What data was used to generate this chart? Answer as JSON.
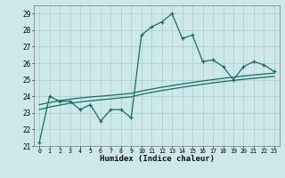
{
  "title": "",
  "xlabel": "Humidex (Indice chaleur)",
  "ylabel": "",
  "bg_color": "#cce8e8",
  "grid_color": "#b0cfcf",
  "line_color": "#1a6b6b",
  "xlim": [
    -0.5,
    23.5
  ],
  "ylim": [
    21,
    29.5
  ],
  "yticks": [
    21,
    22,
    23,
    24,
    25,
    26,
    27,
    28,
    29
  ],
  "xticks": [
    0,
    1,
    2,
    3,
    4,
    5,
    6,
    7,
    8,
    9,
    10,
    11,
    12,
    13,
    14,
    15,
    16,
    17,
    18,
    19,
    20,
    21,
    22,
    23
  ],
  "line1_x": [
    0,
    1,
    2,
    3,
    4,
    5,
    6,
    7,
    8,
    9,
    10,
    11,
    12,
    13,
    14,
    15,
    16,
    17,
    18,
    19,
    20,
    21,
    22,
    23
  ],
  "line1_y": [
    21.2,
    24.0,
    23.7,
    23.7,
    23.2,
    23.5,
    22.5,
    23.2,
    23.2,
    22.7,
    27.7,
    28.2,
    28.5,
    29.0,
    27.5,
    27.7,
    26.1,
    26.2,
    25.8,
    25.0,
    25.8,
    26.1,
    25.9,
    25.5
  ],
  "line2_x": [
    0,
    1,
    2,
    3,
    4,
    5,
    6,
    7,
    8,
    9,
    10,
    11,
    12,
    13,
    14,
    15,
    16,
    17,
    18,
    19,
    20,
    21,
    22,
    23
  ],
  "line2_y": [
    23.5,
    23.62,
    23.74,
    23.83,
    23.9,
    23.96,
    24.01,
    24.06,
    24.12,
    24.18,
    24.32,
    24.44,
    24.55,
    24.65,
    24.75,
    24.84,
    24.93,
    25.01,
    25.09,
    25.16,
    25.23,
    25.29,
    25.35,
    25.4
  ],
  "line3_x": [
    0,
    1,
    2,
    3,
    4,
    5,
    6,
    7,
    8,
    9,
    10,
    11,
    12,
    13,
    14,
    15,
    16,
    17,
    18,
    19,
    20,
    21,
    22,
    23
  ],
  "line3_y": [
    23.2,
    23.35,
    23.47,
    23.58,
    23.66,
    23.73,
    23.79,
    23.85,
    23.91,
    23.97,
    24.12,
    24.24,
    24.35,
    24.45,
    24.55,
    24.64,
    24.73,
    24.81,
    24.89,
    24.96,
    25.03,
    25.09,
    25.15,
    25.2
  ]
}
